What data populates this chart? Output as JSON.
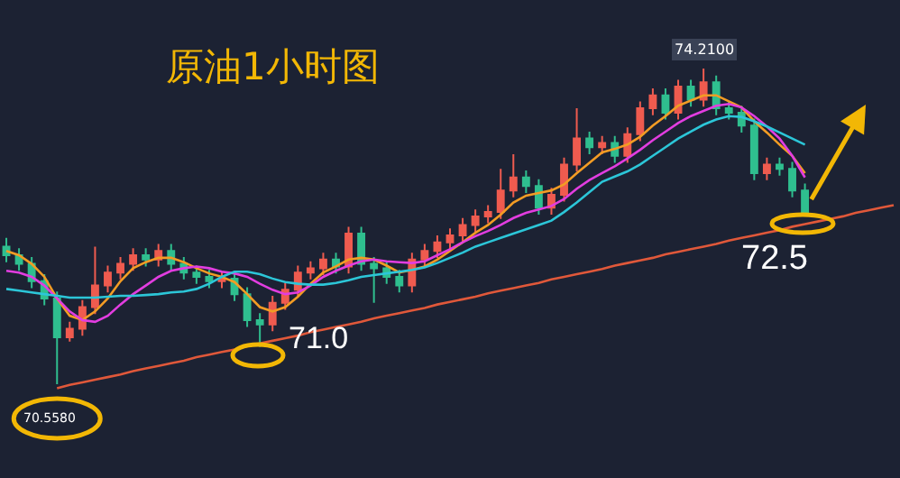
{
  "chart_data": {
    "type": "candlestick",
    "title": "原油1小时图",
    "categories": [
      null,
      null,
      null,
      null,
      null,
      null,
      null,
      null,
      null,
      null,
      null,
      null,
      null,
      null,
      null,
      null,
      null,
      null,
      null,
      null,
      null,
      null,
      null,
      null,
      null,
      null,
      null,
      null,
      null,
      null,
      null,
      null,
      null,
      null,
      null,
      null,
      null,
      null,
      null,
      null,
      null,
      null,
      null,
      null,
      null,
      null,
      null,
      null,
      null,
      null,
      null,
      null,
      null,
      null,
      null,
      null,
      null,
      null,
      null,
      null,
      null,
      null,
      null,
      null,
      null,
      null,
      null,
      null,
      null,
      null,
      null
    ],
    "ohlc": [
      [
        72.15,
        72.25,
        71.97,
        72.05
      ],
      [
        72.05,
        72.13,
        71.87,
        71.95
      ],
      [
        71.95,
        72.03,
        71.67,
        71.75
      ],
      [
        71.75,
        71.83,
        71.47,
        71.55
      ],
      [
        71.55,
        71.63,
        70.558,
        71.1
      ],
      [
        71.1,
        71.28,
        71.05,
        71.2
      ],
      [
        71.2,
        71.53,
        71.12,
        71.45
      ],
      [
        71.45,
        72.15,
        71.37,
        71.7
      ],
      [
        71.7,
        71.93,
        71.62,
        71.85
      ],
      [
        71.85,
        72.03,
        71.77,
        71.95
      ],
      [
        71.95,
        72.13,
        71.87,
        72.05
      ],
      [
        72.05,
        72.13,
        71.92,
        72.0
      ],
      [
        72.0,
        72.18,
        71.92,
        72.1
      ],
      [
        72.1,
        72.18,
        71.87,
        71.95
      ],
      [
        71.95,
        72.03,
        71.77,
        71.85
      ],
      [
        71.85,
        71.93,
        71.72,
        71.8
      ],
      [
        71.8,
        71.88,
        71.67,
        71.75
      ],
      [
        71.75,
        71.86,
        71.67,
        71.78
      ],
      [
        71.78,
        71.86,
        71.52,
        71.6
      ],
      [
        71.6,
        71.68,
        71.22,
        71.3
      ],
      [
        71.3,
        71.38,
        70.99,
        71.25
      ],
      [
        71.25,
        71.58,
        71.17,
        71.5
      ],
      [
        71.5,
        71.73,
        71.42,
        71.65
      ],
      [
        71.65,
        71.93,
        71.57,
        71.85
      ],
      [
        71.85,
        71.98,
        71.77,
        71.9
      ],
      [
        71.9,
        72.08,
        71.82,
        72.0
      ],
      [
        72.0,
        72.08,
        71.84,
        71.92
      ],
      [
        71.92,
        72.38,
        71.84,
        72.3
      ],
      [
        72.3,
        72.38,
        71.87,
        71.95
      ],
      [
        71.95,
        72.03,
        71.5,
        71.9
      ],
      [
        71.9,
        71.98,
        71.72,
        71.8
      ],
      [
        71.8,
        71.88,
        71.62,
        71.7
      ],
      [
        71.7,
        72.08,
        71.62,
        72.0
      ],
      [
        72.0,
        72.18,
        71.92,
        72.1
      ],
      [
        72.1,
        72.28,
        72.02,
        72.2
      ],
      [
        72.2,
        72.36,
        72.12,
        72.28
      ],
      [
        72.28,
        72.48,
        72.2,
        72.4
      ],
      [
        72.4,
        72.58,
        72.32,
        72.5
      ],
      [
        72.5,
        72.63,
        72.42,
        72.55
      ],
      [
        72.55,
        73.05,
        72.47,
        72.8
      ],
      [
        72.8,
        73.22,
        72.72,
        72.95
      ],
      [
        72.95,
        73.03,
        72.77,
        72.85
      ],
      [
        72.85,
        72.93,
        72.52,
        72.6
      ],
      [
        72.6,
        72.83,
        72.52,
        72.75
      ],
      [
        72.75,
        73.18,
        72.67,
        73.1
      ],
      [
        73.1,
        73.75,
        73.02,
        73.4
      ],
      [
        73.4,
        73.48,
        73.22,
        73.3
      ],
      [
        73.3,
        73.43,
        73.22,
        73.35
      ],
      [
        73.35,
        73.43,
        73.12,
        73.2
      ],
      [
        73.2,
        73.53,
        73.12,
        73.45
      ],
      [
        73.45,
        73.83,
        73.37,
        73.75
      ],
      [
        73.75,
        73.98,
        73.67,
        73.9
      ],
      [
        73.9,
        73.98,
        73.62,
        73.7
      ],
      [
        73.7,
        74.08,
        73.62,
        74.0
      ],
      [
        74.0,
        74.08,
        73.77,
        73.85
      ],
      [
        73.85,
        74.21,
        73.77,
        74.05
      ],
      [
        74.05,
        74.13,
        73.67,
        73.75
      ],
      [
        73.75,
        73.83,
        73.62,
        73.7
      ],
      [
        73.7,
        73.78,
        73.47,
        73.55
      ],
      [
        73.55,
        73.63,
        72.92,
        73.0
      ],
      [
        73.0,
        73.18,
        72.92,
        73.1
      ],
      [
        73.1,
        73.18,
        72.97,
        73.05
      ],
      [
        73.05,
        73.13,
        72.72,
        72.8
      ],
      [
        72.8,
        72.88,
        72.5,
        72.55
      ],
      null,
      null,
      null,
      null,
      null,
      null,
      null
    ],
    "series": [
      {
        "type": "line",
        "color": "#f39c24",
        "values": [
          72.1,
          72.05,
          71.95,
          71.8,
          71.55,
          71.35,
          71.3,
          71.4,
          71.55,
          71.75,
          71.9,
          71.97,
          72.02,
          72.02,
          71.97,
          71.9,
          71.84,
          71.8,
          71.74,
          71.6,
          71.45,
          71.4,
          71.45,
          71.57,
          71.72,
          71.85,
          71.92,
          72.0,
          72.02,
          72.0,
          71.93,
          71.85,
          71.88,
          71.92,
          72.0,
          72.1,
          72.2,
          72.31,
          72.4,
          72.52,
          72.66,
          72.74,
          72.77,
          72.8,
          72.87,
          73.0,
          73.12,
          73.24,
          73.28,
          73.33,
          73.42,
          73.55,
          73.66,
          73.78,
          73.84,
          73.9,
          73.9,
          73.83,
          73.76,
          73.6,
          73.47,
          73.33,
          73.2,
          73.0,
          null,
          null,
          null,
          null,
          null,
          null,
          null
        ]
      },
      {
        "type": "line",
        "color": "#e23de0",
        "values": [
          71.87,
          71.85,
          71.8,
          71.7,
          71.55,
          71.4,
          71.3,
          71.28,
          71.35,
          71.48,
          71.6,
          71.7,
          71.8,
          71.87,
          71.9,
          71.92,
          71.9,
          71.86,
          71.84,
          71.8,
          71.72,
          71.65,
          71.6,
          71.62,
          71.7,
          71.8,
          71.87,
          71.93,
          71.98,
          72.0,
          71.98,
          71.97,
          71.96,
          71.98,
          72.05,
          72.12,
          72.2,
          72.27,
          72.33,
          72.4,
          72.48,
          72.54,
          72.58,
          72.62,
          72.7,
          72.82,
          72.92,
          73.0,
          73.08,
          73.17,
          73.27,
          73.38,
          73.48,
          73.58,
          73.66,
          73.72,
          73.78,
          73.8,
          73.76,
          73.66,
          73.54,
          73.4,
          73.2,
          72.95,
          null,
          null,
          null,
          null,
          null,
          null,
          null
        ]
      },
      {
        "type": "line",
        "color": "#2cc6d8",
        "values": [
          71.66,
          71.64,
          71.62,
          71.6,
          71.58,
          71.56,
          71.56,
          71.56,
          71.57,
          71.58,
          71.58,
          71.59,
          71.6,
          71.62,
          71.63,
          71.66,
          71.72,
          71.8,
          71.86,
          71.86,
          71.83,
          71.78,
          71.74,
          71.72,
          71.71,
          71.71,
          71.73,
          71.76,
          71.8,
          71.82,
          71.84,
          71.86,
          71.88,
          71.91,
          71.96,
          72.02,
          72.08,
          72.15,
          72.2,
          72.25,
          72.3,
          72.35,
          72.4,
          72.45,
          72.55,
          72.66,
          72.78,
          72.9,
          72.96,
          73.02,
          73.1,
          73.2,
          73.3,
          73.4,
          73.48,
          73.56,
          73.62,
          73.66,
          73.65,
          73.6,
          73.54,
          73.47,
          73.4,
          73.33,
          null,
          null,
          null,
          null,
          null,
          null,
          null
        ]
      },
      {
        "type": "line",
        "color": "#e0583a",
        "values": [
          null,
          null,
          null,
          null,
          70.51,
          70.55,
          70.58,
          70.61,
          70.64,
          70.67,
          70.71,
          70.74,
          70.77,
          70.8,
          70.83,
          70.87,
          70.9,
          70.93,
          70.96,
          71.0,
          71.03,
          71.06,
          71.09,
          71.12,
          71.16,
          71.19,
          71.22,
          71.25,
          71.28,
          71.32,
          71.35,
          71.38,
          71.41,
          71.44,
          71.48,
          71.51,
          71.54,
          71.57,
          71.61,
          71.64,
          71.67,
          71.7,
          71.73,
          71.77,
          71.8,
          71.83,
          71.86,
          71.89,
          71.93,
          71.96,
          71.99,
          72.02,
          72.06,
          72.09,
          72.12,
          72.15,
          72.18,
          72.22,
          72.25,
          72.28,
          72.31,
          72.34,
          72.38,
          72.41,
          72.44,
          72.47,
          72.5,
          72.54,
          72.57,
          72.6,
          72.63
        ]
      }
    ],
    "annotations": [
      {
        "text": "70.5580",
        "y": 70.558
      },
      "71.0",
      {
        "text": "74.2100",
        "y": 74.21
      },
      "72.5"
    ],
    "tick_labels": false,
    "grid": false
  }
}
